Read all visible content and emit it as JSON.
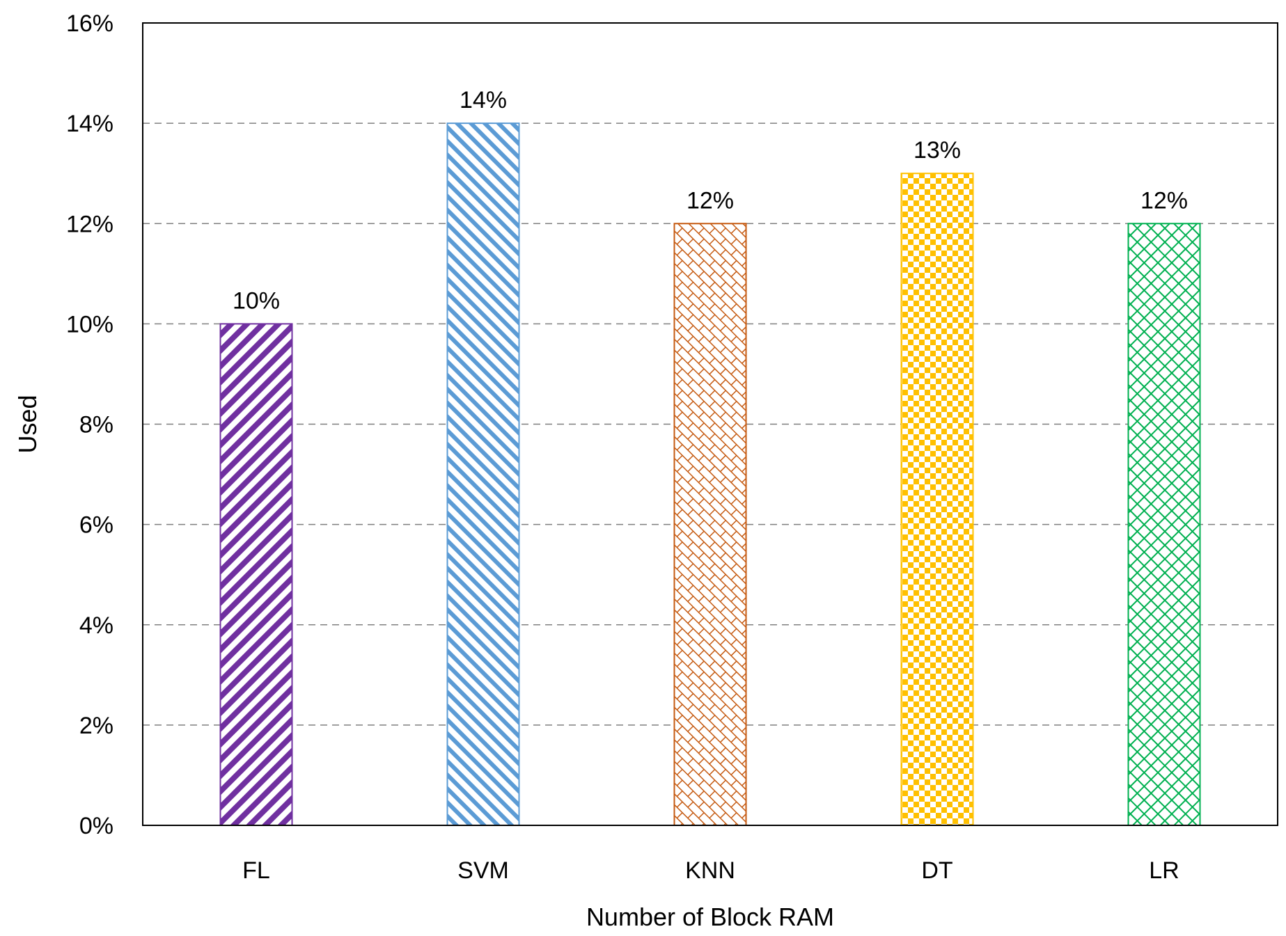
{
  "chart_data": {
    "type": "bar",
    "title": "",
    "xlabel": "Number of Block RAM",
    "ylabel": "Used",
    "categories": [
      "FL",
      "SVM",
      "KNN",
      "DT",
      "LR"
    ],
    "values": [
      10,
      14,
      12,
      13,
      12
    ],
    "data_labels": [
      "10%",
      "14%",
      "12%",
      "13%",
      "12%"
    ],
    "ylim": [
      0,
      16
    ],
    "yticks": [
      0,
      2,
      4,
      6,
      8,
      10,
      12,
      14,
      16
    ],
    "ytick_labels": [
      "0%",
      "2%",
      "4%",
      "6%",
      "8%",
      "10%",
      "12%",
      "14%",
      "16%"
    ],
    "grid": "horizontal dashed",
    "bar_colors": [
      "#7030A0",
      "#5B9BD5",
      "#C55A11",
      "#FFC000",
      "#00B050"
    ],
    "bar_patterns": [
      "wide-downward-diagonal",
      "wide-upward-diagonal",
      "brick",
      "checkerboard",
      "diagonal-cross"
    ]
  }
}
